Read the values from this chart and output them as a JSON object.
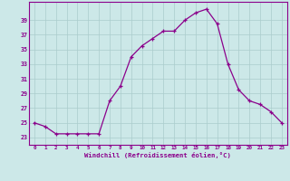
{
  "x": [
    0,
    1,
    2,
    3,
    4,
    5,
    6,
    7,
    8,
    9,
    10,
    11,
    12,
    13,
    14,
    15,
    16,
    17,
    18,
    19,
    20,
    21,
    22,
    23
  ],
  "y": [
    25,
    24.5,
    23.5,
    23.5,
    23.5,
    23.5,
    23.5,
    28,
    30,
    34,
    35.5,
    36.5,
    37.5,
    37.5,
    39,
    40,
    40.5,
    38.5,
    33,
    29.5,
    28,
    27.5,
    26.5,
    25
  ],
  "line_color": "#8B008B",
  "marker_color": "#8B008B",
  "bg_color": "#cce8e8",
  "grid_color": "#aacccc",
  "ylabel_ticks": [
    23,
    25,
    27,
    29,
    31,
    33,
    35,
    37,
    39
  ],
  "xlabel": "Windchill (Refroidissement éolien,°C)",
  "xlabel_color": "#8B008B",
  "tick_color": "#8B008B",
  "ylim": [
    22.0,
    41.5
  ],
  "xlim": [
    -0.5,
    23.5
  ]
}
